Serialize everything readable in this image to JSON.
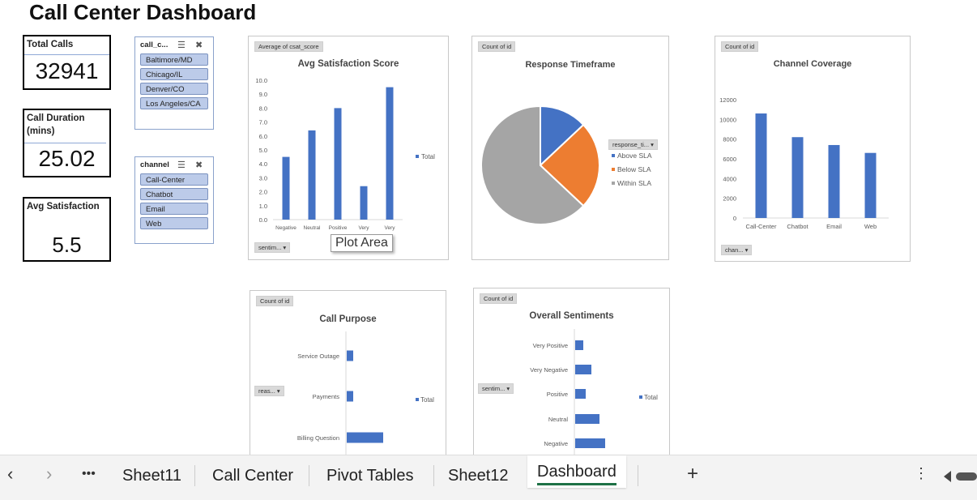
{
  "app": {
    "title": "Call Center Dashboard"
  },
  "kpis": [
    {
      "label": "Total Calls",
      "value": "32941"
    },
    {
      "label": "Call Duration (mins)",
      "value": "25.02"
    },
    {
      "label": "Avg Satisfaction",
      "value": "5.5"
    }
  ],
  "slicers": [
    {
      "name": "call_c...",
      "items": [
        "Baltimore/MD",
        "Chicago/IL",
        "Denver/CO",
        "Los Angeles/CA"
      ]
    },
    {
      "name": "channel",
      "items": [
        "Call-Center",
        "Chatbot",
        "Email",
        "Web"
      ]
    }
  ],
  "tooltip": "Plot Area",
  "colors": {
    "blue": "#4472c4",
    "orange": "#ed7d31",
    "gray": "#a5a5a5",
    "tab_underline": "#1e7145"
  },
  "sheet_tabs": [
    "Sheet11",
    "Call Center",
    "Pivot Tables",
    "Sheet12",
    "Dashboard"
  ],
  "active_tab": "Dashboard",
  "icons": {
    "prev": "chevron-left-icon",
    "next": "chevron-right-icon",
    "more": "more-icon",
    "add": "plus-icon",
    "options": "vertical-dots-icon"
  },
  "chart_data": [
    {
      "type": "bar",
      "field_button": "Average of csat_score",
      "axis_button": "sentim...",
      "title": "Avg Satisfaction  Score",
      "categories": [
        "Negative",
        "Neutral",
        "Positive",
        "Very",
        "Very"
      ],
      "series": [
        {
          "name": "Total",
          "values": [
            4.5,
            6.4,
            8.0,
            2.4,
            9.5
          ]
        }
      ],
      "ylim": [
        0,
        10
      ],
      "yticks": [
        "0.0",
        "1.0",
        "2.0",
        "3.0",
        "4.0",
        "5.0",
        "6.0",
        "7.0",
        "8.0",
        "9.0",
        "10.0"
      ],
      "legend": "right"
    },
    {
      "type": "pie",
      "field_button": "Count of id",
      "title": "Response Timeframe",
      "legend_button": "response_ti...",
      "slices": [
        {
          "name": "Above SLA",
          "value": 13
        },
        {
          "name": "Below SLA",
          "value": 24
        },
        {
          "name": "Within SLA",
          "value": 63
        }
      ],
      "legend": "right"
    },
    {
      "type": "bar",
      "field_button": "Count of id",
      "axis_button": "chan...",
      "title": "Channel Coverage",
      "categories": [
        "Call-Center",
        "Chatbot",
        "Email",
        "Web"
      ],
      "series": [
        {
          "values": [
            10600,
            8200,
            7400,
            6600
          ]
        }
      ],
      "ylim": [
        0,
        12000
      ],
      "yticks": [
        "0",
        "2000",
        "4000",
        "6000",
        "8000",
        "10000",
        "12000"
      ]
    },
    {
      "type": "bar",
      "orientation": "horizontal",
      "field_button": "Count of id",
      "axis_button": "reas...",
      "title": "Call Purpose",
      "categories": [
        "Service Outage",
        "Payments",
        "Billing Question"
      ],
      "series": [
        {
          "name": "Total",
          "values": [
            800,
            800,
            4500
          ]
        }
      ],
      "legend": "right"
    },
    {
      "type": "bar",
      "orientation": "horizontal",
      "field_button": "Count of id",
      "axis_button": "sentim...",
      "title": "Overall Sentiments",
      "categories": [
        "Very Positive",
        "Very Negative",
        "Positive",
        "Neutral",
        "Negative"
      ],
      "series": [
        {
          "name": "Total",
          "values": [
            1000,
            2000,
            1300,
            3000,
            3700
          ]
        }
      ],
      "legend": "right"
    }
  ]
}
